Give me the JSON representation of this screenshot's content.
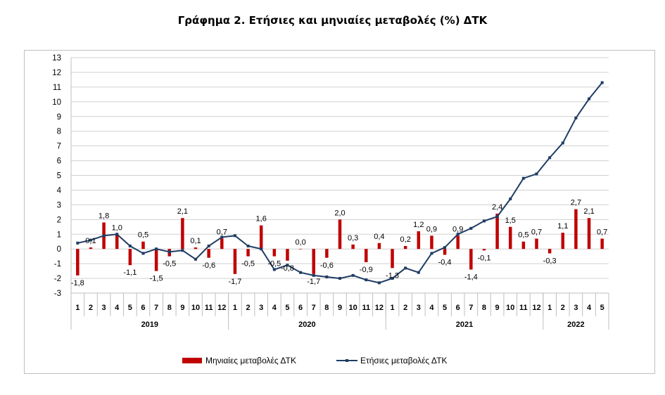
{
  "title": "Γράφημα 2. Ετήσιες και μηνιαίες μεταβολές (%) ΔΤΚ",
  "chart_data": {
    "type": "bar+line",
    "title": "Γράφημα 2. Ετήσιες και μηνιαίες μεταβολές (%) ΔΤΚ",
    "ylim": [
      -3,
      13
    ],
    "yticks": [
      "-3",
      "-2",
      "-1",
      "0",
      "1",
      "2",
      "3",
      "4",
      "5",
      "6",
      "7",
      "8",
      "9",
      "10",
      "11",
      "12",
      "13"
    ],
    "months": [
      "1",
      "2",
      "3",
      "4",
      "5",
      "6",
      "7",
      "8",
      "9",
      "10",
      "11",
      "12",
      "1",
      "2",
      "3",
      "4",
      "5",
      "6",
      "7",
      "8",
      "9",
      "10",
      "11",
      "12",
      "1",
      "2",
      "3",
      "4",
      "5",
      "6",
      "7",
      "8",
      "9",
      "10",
      "11",
      "12",
      "1",
      "2",
      "3",
      "4",
      "5"
    ],
    "years": [
      {
        "label": "2019",
        "start": 0,
        "count": 12
      },
      {
        "label": "2020",
        "start": 12,
        "count": 12
      },
      {
        "label": "2021",
        "start": 24,
        "count": 12
      },
      {
        "label": "2022",
        "start": 36,
        "count": 5
      }
    ],
    "grid": true,
    "legend_position": "bottom",
    "colors": {
      "monthly": "#c00000",
      "annual": "#1f3c64"
    },
    "series": [
      {
        "name": "Μηνιαίες μεταβολές ΔΤΚ",
        "kind": "bar",
        "values": [
          -1.8,
          0.1,
          1.8,
          1.0,
          -1.1,
          0.5,
          -1.5,
          -0.5,
          2.1,
          0.1,
          -0.6,
          0.7,
          -1.7,
          -0.5,
          1.6,
          -0.5,
          -0.8,
          0.0,
          -1.7,
          -0.6,
          2.0,
          0.3,
          -0.9,
          0.4,
          -1.3,
          0.2,
          1.2,
          0.9,
          -0.4,
          0.9,
          -1.4,
          -0.1,
          2.4,
          1.5,
          0.5,
          0.7,
          -0.3,
          1.1,
          2.7,
          2.1,
          0.7
        ],
        "labels": [
          "-1,8",
          "0,1",
          "1,8",
          "1,0",
          "-1,1",
          "0,5",
          "-1,5",
          "-0,5",
          "2,1",
          "0,1",
          "-0,6",
          "0,7",
          "-1,7",
          "-0,5",
          "1,6",
          "-0,5",
          "-0,8",
          "0,0",
          "-1,7",
          "-0,6",
          "2,0",
          "0,3",
          "-0,9",
          "0,4",
          "-1,3",
          "0,2",
          "1,2",
          "0,9",
          "-0,4",
          "0,9",
          "-1,4",
          "-0,1",
          "2,4",
          "1,5",
          "0,5",
          "0,7",
          "-0,3",
          "1,1",
          "2,7",
          "2,1",
          "0,7"
        ]
      },
      {
        "name": "Ετήσιες μεταβολές ΔΤΚ",
        "kind": "line",
        "values": [
          0.4,
          0.6,
          0.9,
          1.0,
          0.2,
          -0.3,
          0.0,
          -0.2,
          -0.1,
          -0.7,
          0.2,
          0.8,
          0.9,
          0.2,
          0.0,
          -1.4,
          -1.1,
          -1.6,
          -1.8,
          -1.9,
          -2.0,
          -1.8,
          -2.1,
          -2.3,
          -2.0,
          -1.3,
          -1.6,
          -0.3,
          0.1,
          1.0,
          1.4,
          1.9,
          2.2,
          3.4,
          4.8,
          5.1,
          6.2,
          7.2,
          8.9,
          10.2,
          11.3
        ]
      }
    ]
  }
}
